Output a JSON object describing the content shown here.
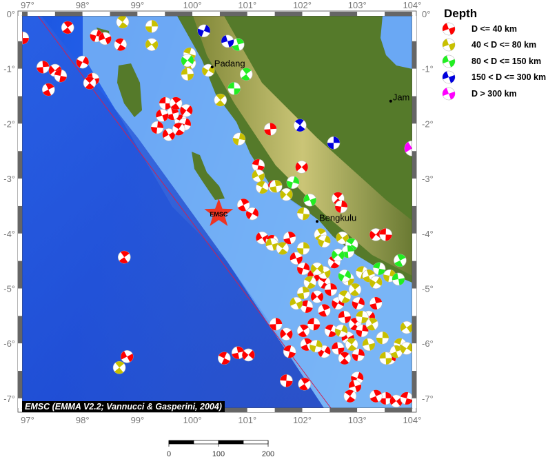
{
  "map": {
    "lon_ticks": [
      "97°",
      "98°",
      "99°",
      "100°",
      "101°",
      "102°",
      "103°",
      "104°"
    ],
    "lat_ticks": [
      "0°",
      "-1°",
      "-2°",
      "-3°",
      "-4°",
      "-5°",
      "-6°",
      "-7°"
    ],
    "extent": {
      "lon": [
        96.9,
        104.0
      ],
      "lat": [
        -7.2,
        0.0
      ]
    },
    "cities": [
      {
        "name": "Padang",
        "lon": 100.36,
        "lat": -0.97
      },
      {
        "name": "Bengkulu",
        "lon": 102.27,
        "lat": -3.78
      },
      {
        "name": "Jam",
        "lon": 103.61,
        "lat": -1.59
      }
    ],
    "epicenter": {
      "label": "EMSC",
      "lon": 100.48,
      "lat": -3.64,
      "color": "#ee3322"
    },
    "trench_color": "#cc2255"
  },
  "legend": {
    "title": "Depth",
    "items": [
      {
        "label": "D <= 40 km",
        "color": "#ff0000"
      },
      {
        "label": "40 < D <= 80 km",
        "color": "#c8c000"
      },
      {
        "label": "80 < D <= 150 km",
        "color": "#22ee22"
      },
      {
        "label": "150 < D <= 300 km",
        "color": "#0000dd"
      },
      {
        "label": "D > 300 km",
        "color": "#ff00ff"
      }
    ]
  },
  "events": {
    "shallow": [
      [
        96.91,
        -0.44
      ],
      [
        97.73,
        -0.25
      ],
      [
        98.25,
        -0.4
      ],
      [
        98.41,
        -0.45
      ],
      [
        98.69,
        -0.56
      ],
      [
        97.28,
        -0.97
      ],
      [
        97.5,
        -1.03
      ],
      [
        97.6,
        -1.13
      ],
      [
        97.38,
        -1.38
      ],
      [
        98.0,
        -0.88
      ],
      [
        98.19,
        -1.19
      ],
      [
        98.13,
        -1.26
      ],
      [
        99.36,
        -2.07
      ],
      [
        99.57,
        -2.2
      ],
      [
        99.79,
        -1.95
      ],
      [
        99.64,
        -1.82
      ],
      [
        99.89,
        -1.76
      ],
      [
        99.51,
        -1.63
      ],
      [
        99.7,
        -1.63
      ],
      [
        99.86,
        -2.01
      ],
      [
        99.45,
        -1.85
      ],
      [
        99.75,
        -2.1
      ],
      [
        101.42,
        -2.1
      ],
      [
        101.99,
        -2.79
      ],
      [
        101.2,
        -2.76
      ],
      [
        100.93,
        -3.48
      ],
      [
        101.09,
        -3.64
      ],
      [
        101.49,
        -3.14
      ],
      [
        102.65,
        -3.36
      ],
      [
        102.71,
        -3.51
      ],
      [
        101.27,
        -4.08
      ],
      [
        101.45,
        -4.14
      ],
      [
        101.77,
        -4.08
      ],
      [
        103.34,
        -4.02
      ],
      [
        103.52,
        -4.02
      ],
      [
        98.76,
        -4.43
      ],
      [
        102.02,
        -4.64
      ],
      [
        102.21,
        -4.77
      ],
      [
        102.4,
        -4.89
      ],
      [
        102.52,
        -5.02
      ],
      [
        102.27,
        -5.15
      ],
      [
        102.08,
        -5.33
      ],
      [
        102.4,
        -5.4
      ],
      [
        102.65,
        -5.27
      ],
      [
        102.77,
        -5.52
      ],
      [
        102.96,
        -5.65
      ],
      [
        103.09,
        -5.77
      ],
      [
        102.83,
        -5.9
      ],
      [
        102.52,
        -5.77
      ],
      [
        103.34,
        -5.27
      ],
      [
        103.21,
        -5.52
      ],
      [
        102.21,
        -5.65
      ],
      [
        102.02,
        -5.77
      ],
      [
        103.02,
        -5.27
      ],
      [
        101.89,
        -4.45
      ],
      [
        102.58,
        -4.52
      ],
      [
        101.52,
        -5.65
      ],
      [
        101.71,
        -5.83
      ],
      [
        101.77,
        -6.15
      ],
      [
        102.08,
        -6.02
      ],
      [
        102.4,
        -6.15
      ],
      [
        102.65,
        -6.09
      ],
      [
        102.77,
        -6.27
      ],
      [
        103.02,
        -6.21
      ],
      [
        98.81,
        -6.24
      ],
      [
        100.58,
        -6.27
      ],
      [
        100.83,
        -6.17
      ],
      [
        101.02,
        -6.21
      ],
      [
        101.71,
        -6.68
      ],
      [
        102.04,
        -6.74
      ],
      [
        103.0,
        -6.63
      ],
      [
        102.96,
        -6.78
      ],
      [
        102.87,
        -6.96
      ],
      [
        103.52,
        -7.0
      ],
      [
        103.71,
        -7.05
      ],
      [
        103.9,
        -7.0
      ],
      [
        103.34,
        -6.96
      ],
      [
        103.59,
        -6.27
      ]
    ],
    "intermediate": [
      [
        98.73,
        -0.15
      ],
      [
        99.26,
        -0.23
      ],
      [
        99.26,
        -0.56
      ],
      [
        99.95,
        -0.73
      ],
      [
        99.95,
        -0.9
      ],
      [
        100.29,
        -1.03
      ],
      [
        99.91,
        -1.1
      ],
      [
        100.51,
        -1.57
      ],
      [
        100.85,
        -2.28
      ],
      [
        101.2,
        -2.95
      ],
      [
        101.27,
        -3.16
      ],
      [
        101.52,
        -3.14
      ],
      [
        101.71,
        -3.29
      ],
      [
        102.02,
        -3.64
      ],
      [
        102.33,
        -4.02
      ],
      [
        102.4,
        -4.14
      ],
      [
        101.45,
        -4.2
      ],
      [
        101.64,
        -4.27
      ],
      [
        102.02,
        -4.27
      ],
      [
        102.73,
        -4.08
      ],
      [
        103.09,
        -4.71
      ],
      [
        103.21,
        -4.77
      ],
      [
        103.34,
        -4.89
      ],
      [
        102.83,
        -4.83
      ],
      [
        102.96,
        -5.02
      ],
      [
        103.59,
        -4.77
      ],
      [
        102.4,
        -4.71
      ],
      [
        102.14,
        -4.89
      ],
      [
        102.02,
        -5.08
      ],
      [
        102.27,
        -4.64
      ],
      [
        103.09,
        -5.52
      ],
      [
        103.27,
        -5.65
      ],
      [
        102.71,
        -5.77
      ],
      [
        103.21,
        -6.02
      ],
      [
        102.9,
        -6.02
      ],
      [
        103.46,
        -5.9
      ],
      [
        103.9,
        -5.71
      ],
      [
        103.78,
        -6.02
      ],
      [
        103.71,
        -6.15
      ],
      [
        103.9,
        -6.09
      ],
      [
        103.52,
        -6.27
      ],
      [
        98.67,
        -6.44
      ],
      [
        102.25,
        -6.05
      ],
      [
        101.89,
        -5.27
      ],
      [
        102.77,
        -5.15
      ]
    ],
    "deep": [
      [
        100.83,
        -0.56
      ],
      [
        99.91,
        -0.85
      ],
      [
        100.76,
        -1.36
      ],
      [
        100.98,
        -1.1
      ],
      [
        101.83,
        -3.07
      ],
      [
        102.14,
        -3.39
      ],
      [
        102.9,
        -4.2
      ],
      [
        102.83,
        -4.33
      ],
      [
        102.65,
        -4.39
      ],
      [
        103.4,
        -4.64
      ],
      [
        103.78,
        -4.49
      ],
      [
        102.77,
        -4.77
      ],
      [
        103.75,
        -4.83
      ]
    ],
    "very_deep": [
      [
        100.21,
        -0.31
      ],
      [
        100.64,
        -0.5
      ],
      [
        101.96,
        -2.03
      ],
      [
        102.57,
        -2.35
      ]
    ],
    "deepest": [
      [
        104.0,
        -2.45
      ]
    ]
  },
  "credit": "EMSC (EMMA V2.2; Vannucci & Gasperini, 2004)",
  "scale_bar": {
    "labels": [
      "0",
      "100",
      "200"
    ]
  }
}
